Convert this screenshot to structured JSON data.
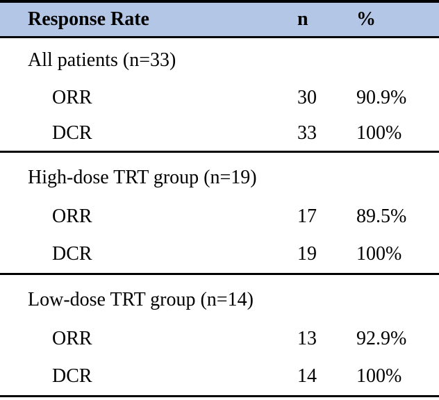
{
  "table": {
    "header": {
      "response_rate": "Response Rate",
      "n": "n",
      "pct": "%"
    },
    "sections": [
      {
        "label": "All patients (n=33)",
        "rows": [
          {
            "name": "ORR",
            "n": "30",
            "pct": "90.9%"
          },
          {
            "name": "DCR",
            "n": "33",
            "pct": "100%"
          }
        ]
      },
      {
        "label": "High-dose TRT group (n=19)",
        "rows": [
          {
            "name": "ORR",
            "n": "17",
            "pct": "89.5%"
          },
          {
            "name": "DCR",
            "n": "19",
            "pct": "100%"
          }
        ]
      },
      {
        "label": "Low-dose TRT group (n=14)",
        "rows": [
          {
            "name": "ORR",
            "n": "13",
            "pct": "92.9%"
          },
          {
            "name": "DCR",
            "n": "14",
            "pct": "100%"
          }
        ]
      }
    ],
    "colors": {
      "header_bg": "#b3c6e6",
      "border": "#000000",
      "text": "#000000"
    }
  }
}
